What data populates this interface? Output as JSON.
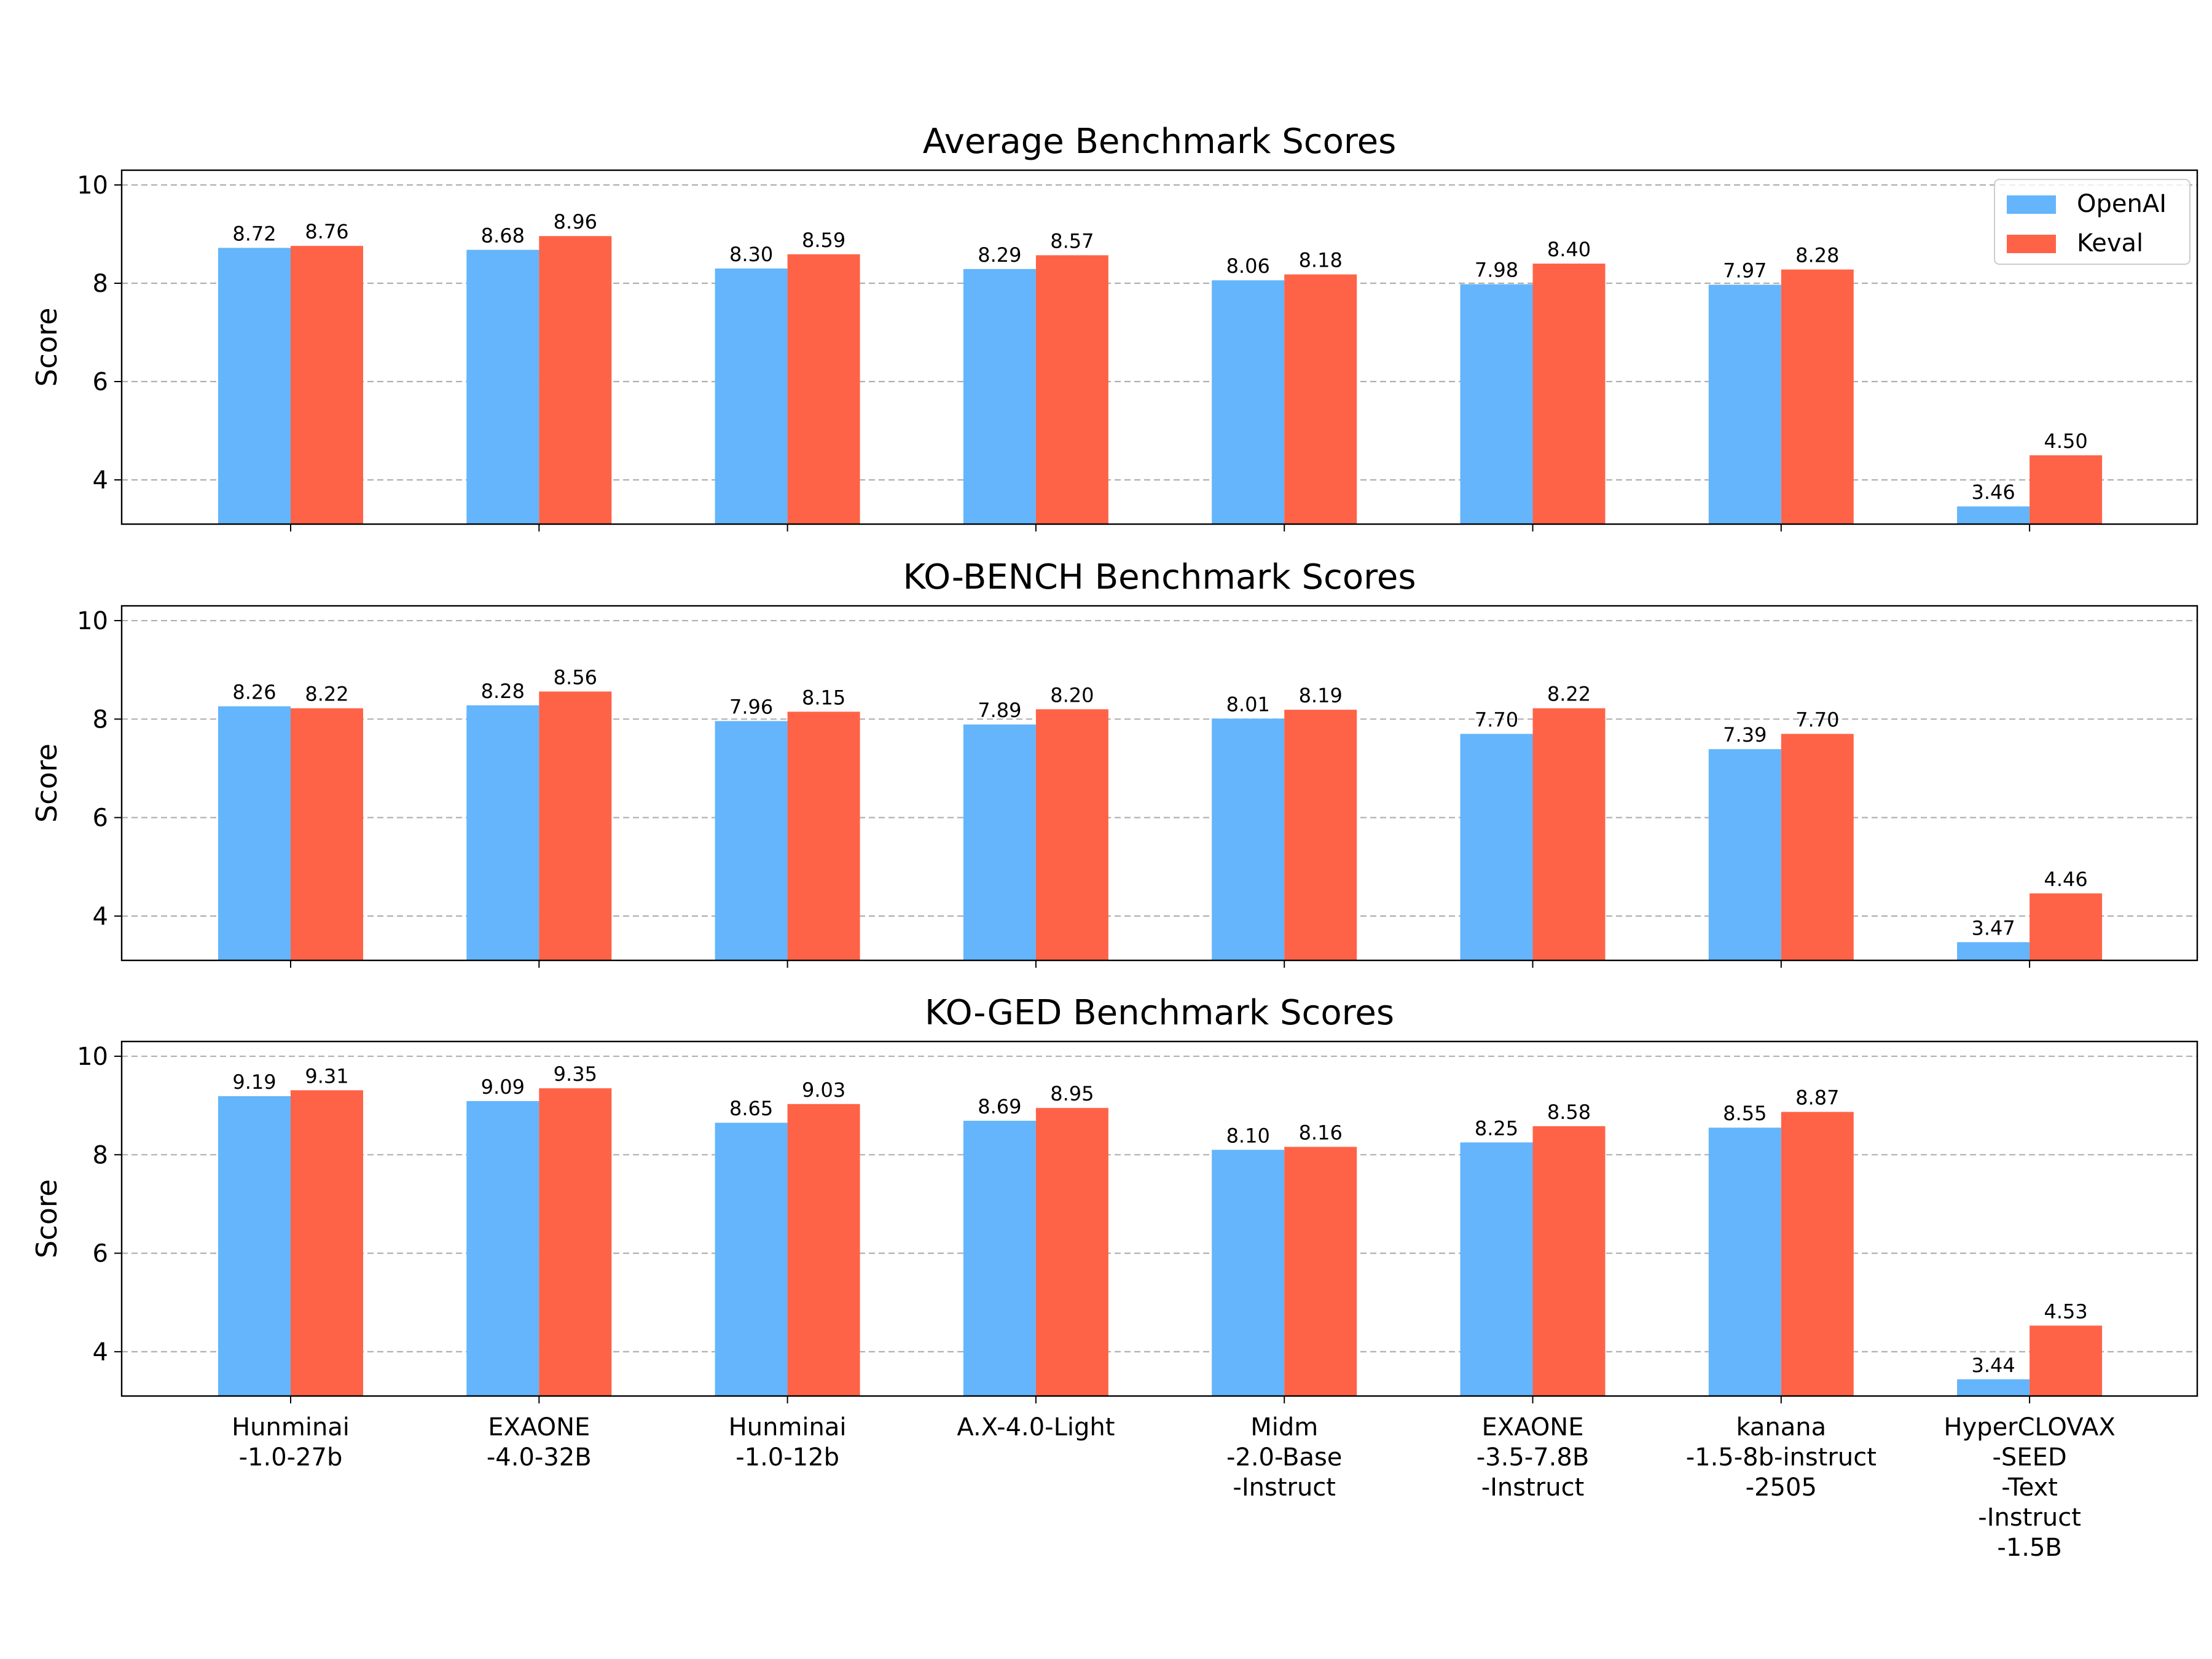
{
  "figure": {
    "background": "#ffffff"
  },
  "colors": {
    "openai": "#64b5fb",
    "keval": "#ff6347",
    "grid": "#b0b0b0",
    "axes": "#000000"
  },
  "legend": {
    "placement": "top-right",
    "entries": [
      "OpenAI",
      "Keval"
    ]
  },
  "chart_data": [
    {
      "type": "bar",
      "title": "Average Benchmark Scores",
      "ylabel": "Score",
      "ylim": [
        3.1,
        10.3
      ],
      "yticks": [
        "4",
        "6",
        "8",
        "10"
      ],
      "grid": "y dashed",
      "categories": [
        "Hunminai\n-1.0-27b",
        "EXAONE\n-4.0-32B",
        "Hunminai\n-1.0-12b",
        "A.X-4.0-Light",
        "Midm\n-2.0-Base\n-Instruct",
        "EXAONE\n-3.5-7.8B\n-Instruct",
        "kanana\n-1.5-8b-instruct\n-2505",
        "HyperCLOVAX\n-SEED\n-Text\n-Instruct\n-1.5B"
      ],
      "series": [
        {
          "name": "OpenAI",
          "values": [
            8.72,
            8.68,
            8.3,
            8.29,
            8.06,
            7.98,
            7.97,
            3.46
          ],
          "labels": [
            "8.72",
            "8.68",
            "8.30",
            "8.29",
            "8.06",
            "7.98",
            "7.97",
            "3.46"
          ]
        },
        {
          "name": "Keval",
          "values": [
            8.76,
            8.96,
            8.59,
            8.57,
            8.18,
            8.4,
            8.28,
            4.5
          ],
          "labels": [
            "8.76",
            "8.96",
            "8.59",
            "8.57",
            "8.18",
            "8.40",
            "8.28",
            "4.50"
          ]
        }
      ]
    },
    {
      "type": "bar",
      "title": "KO-BENCH Benchmark Scores",
      "ylabel": "Score",
      "ylim": [
        3.1,
        10.3
      ],
      "yticks": [
        "4",
        "6",
        "8",
        "10"
      ],
      "grid": "y dashed",
      "categories": [
        "Hunminai\n-1.0-27b",
        "EXAONE\n-4.0-32B",
        "Hunminai\n-1.0-12b",
        "A.X-4.0-Light",
        "Midm\n-2.0-Base\n-Instruct",
        "EXAONE\n-3.5-7.8B\n-Instruct",
        "kanana\n-1.5-8b-instruct\n-2505",
        "HyperCLOVAX\n-SEED\n-Text\n-Instruct\n-1.5B"
      ],
      "series": [
        {
          "name": "OpenAI",
          "values": [
            8.26,
            8.28,
            7.96,
            7.89,
            8.01,
            7.7,
            7.39,
            3.47
          ],
          "labels": [
            "8.26",
            "8.28",
            "7.96",
            "7.89",
            "8.01",
            "7.70",
            "7.39",
            "3.47"
          ]
        },
        {
          "name": "Keval",
          "values": [
            8.22,
            8.56,
            8.15,
            8.2,
            8.19,
            8.22,
            7.7,
            4.46
          ],
          "labels": [
            "8.22",
            "8.56",
            "8.15",
            "8.20",
            "8.19",
            "8.22",
            "7.70",
            "4.46"
          ]
        }
      ]
    },
    {
      "type": "bar",
      "title": "KO-GED Benchmark Scores",
      "ylabel": "Score",
      "ylim": [
        3.1,
        10.3
      ],
      "yticks": [
        "4",
        "6",
        "8",
        "10"
      ],
      "grid": "y dashed",
      "categories": [
        "Hunminai\n-1.0-27b",
        "EXAONE\n-4.0-32B",
        "Hunminai\n-1.0-12b",
        "A.X-4.0-Light",
        "Midm\n-2.0-Base\n-Instruct",
        "EXAONE\n-3.5-7.8B\n-Instruct",
        "kanana\n-1.5-8b-instruct\n-2505",
        "HyperCLOVAX\n-SEED\n-Text\n-Instruct\n-1.5B"
      ],
      "series": [
        {
          "name": "OpenAI",
          "values": [
            9.19,
            9.09,
            8.65,
            8.69,
            8.1,
            8.25,
            8.55,
            3.44
          ],
          "labels": [
            "9.19",
            "9.09",
            "8.65",
            "8.69",
            "8.10",
            "8.25",
            "8.55",
            "3.44"
          ]
        },
        {
          "name": "Keval",
          "values": [
            9.31,
            9.35,
            9.03,
            8.95,
            8.16,
            8.58,
            8.87,
            4.53
          ],
          "labels": [
            "9.31",
            "9.35",
            "9.03",
            "8.95",
            "8.16",
            "8.58",
            "8.87",
            "4.53"
          ]
        }
      ]
    }
  ]
}
